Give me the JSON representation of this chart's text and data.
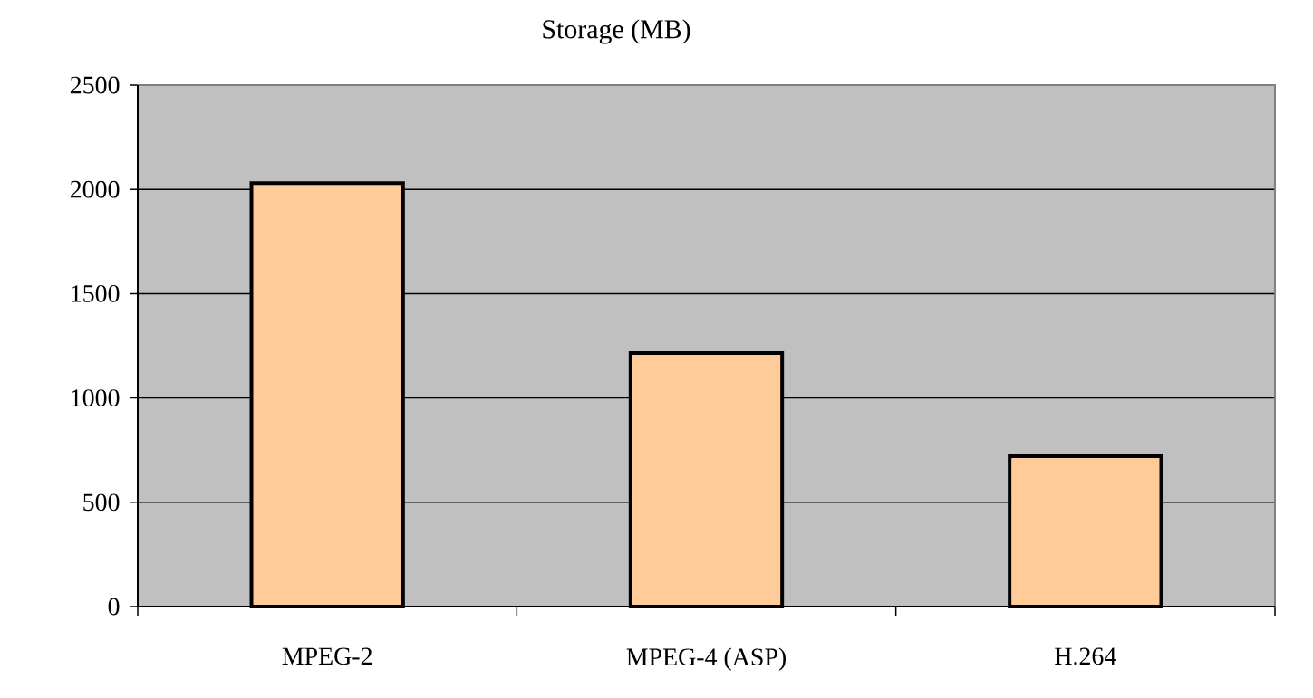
{
  "chart_data": {
    "type": "bar",
    "title": "Storage (MB)",
    "categories": [
      "MPEG-2",
      "MPEG-4 (ASP)",
      "H.264"
    ],
    "values": [
      2030,
      1215,
      720
    ],
    "color": "#ffcc99",
    "ylim": [
      0,
      2500
    ],
    "yticks": [
      0,
      500,
      1000,
      1500,
      2000,
      2500
    ],
    "grid": "y"
  }
}
